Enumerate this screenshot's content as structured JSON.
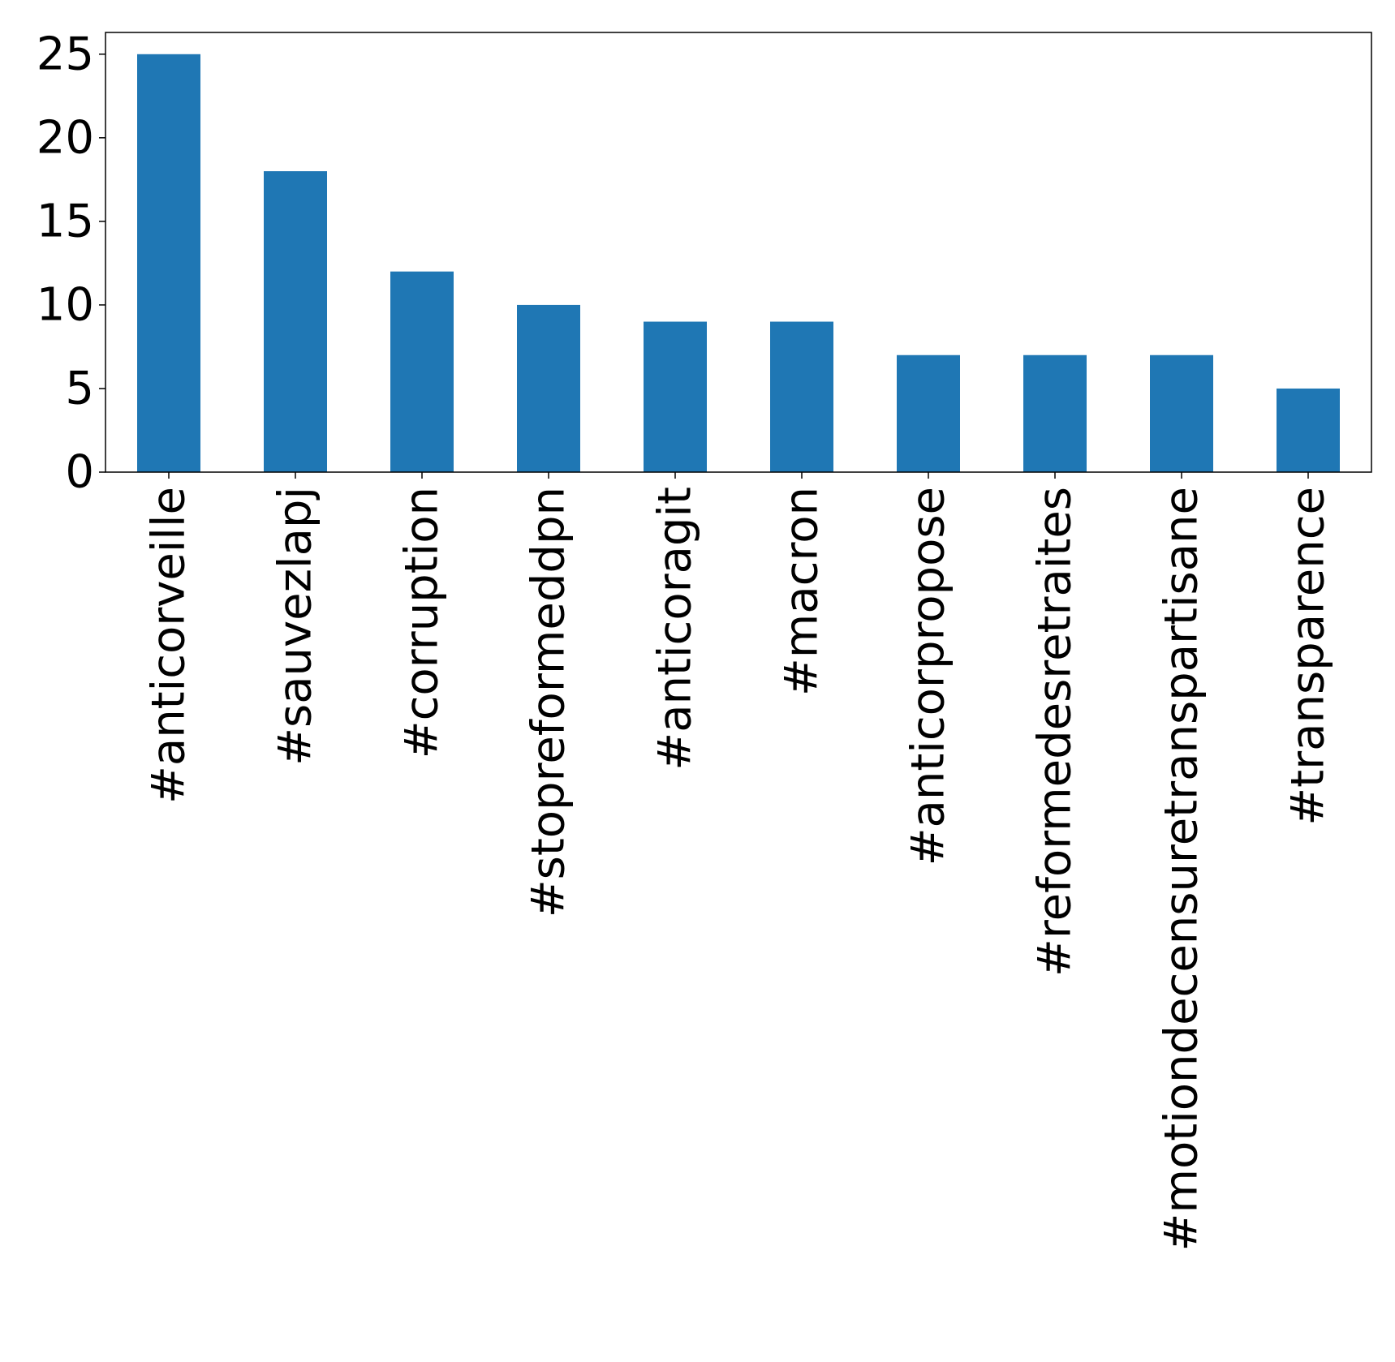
{
  "chart_data": {
    "type": "bar",
    "categories": [
      "#anticorveille",
      "#sauvezlapj",
      "#corruption",
      "#stopreformeddpn",
      "#anticoragit",
      "#macron",
      "#anticorpropose",
      "#reformedesretraites",
      "#motiondecensuretranspartisane",
      "#transparence"
    ],
    "values": [
      25,
      18,
      12,
      10,
      9,
      9,
      7,
      7,
      7,
      5
    ],
    "ylim": [
      0,
      26.3
    ],
    "yticks": [
      "0",
      "5",
      "10",
      "15",
      "20",
      "25"
    ],
    "title": "",
    "xlabel": "",
    "ylabel": "",
    "bar_color": "#1f77b4",
    "grid": false
  }
}
